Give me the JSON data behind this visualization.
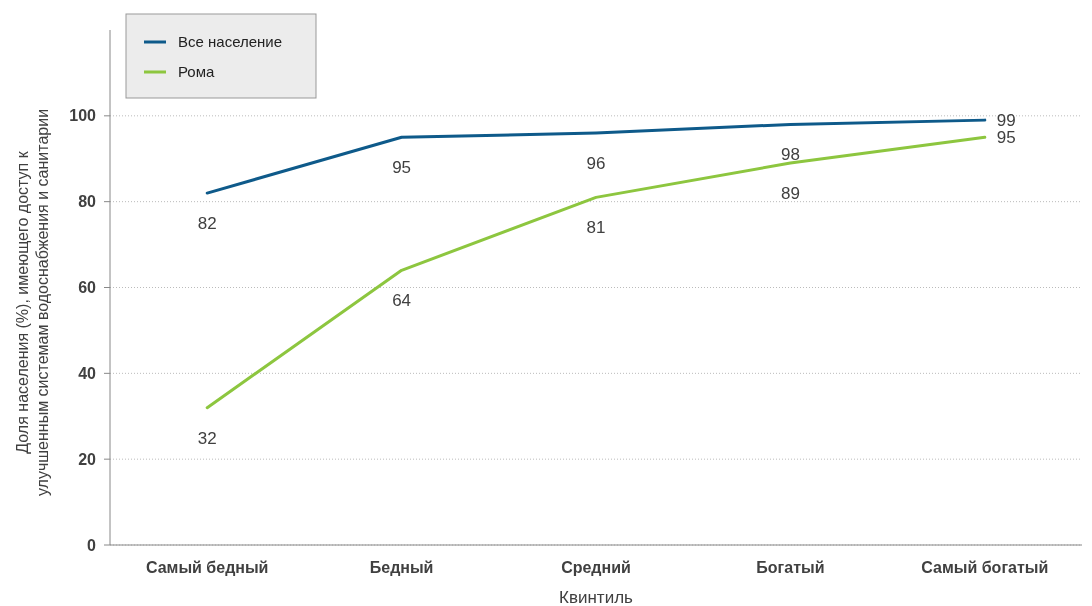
{
  "chart_data": {
    "type": "line",
    "xlabel": "Квинтиль",
    "ylabel": "Доля населения (%), имеющего доступ к улучшенным системам водоснабжения и санитарии",
    "categories": [
      "Самый бедный",
      "Бедный",
      "Средний",
      "Богатый",
      "Самый богатый"
    ],
    "series": [
      {
        "name": "Все население",
        "color": "#0e5a8a",
        "values": [
          82,
          95,
          96,
          98,
          99
        ]
      },
      {
        "name": "Рома",
        "color": "#8dc63f",
        "values": [
          32,
          64,
          81,
          89,
          95
        ]
      }
    ],
    "ylim": [
      0,
      120
    ],
    "yticks": [
      0,
      20,
      40,
      60,
      80,
      100
    ],
    "grid": "y",
    "legend": "top left",
    "marker": "none",
    "line_style": "solid",
    "data_labels": true
  }
}
